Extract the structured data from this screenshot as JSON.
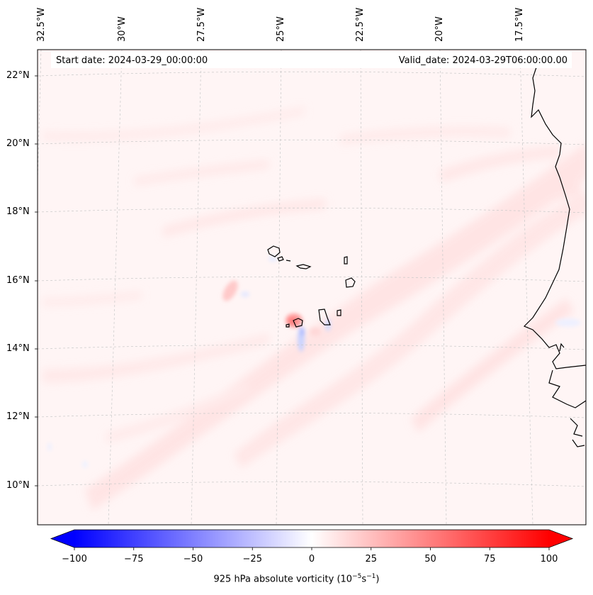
{
  "header": {
    "start_date": "Start date: 2024-03-29_00:00:00",
    "valid_date": "Valid_date: 2024-03-29T06:00:00.00"
  },
  "longitude_labels": [
    "32.5°W",
    "30°W",
    "27.5°W",
    "25°W",
    "22.5°W",
    "20°W",
    "17.5°W"
  ],
  "latitude_labels": [
    "22°N",
    "20°N",
    "18°N",
    "16°N",
    "14°N",
    "12°N",
    "10°N"
  ],
  "map": {
    "field": "925 hPa absolute vorticity",
    "colormap": "bwr",
    "background_color": "#fff5f5",
    "coastline_color": "#000000",
    "gridline_style": "dashed light grey"
  },
  "colorbar": {
    "ticks": [
      "−100",
      "−75",
      "−50",
      "−25",
      "0",
      "25",
      "50",
      "75",
      "100"
    ],
    "label_main": "925 hPa absolute vorticity (10",
    "label_exp1": "−5",
    "label_mid": "s",
    "label_exp2": "−1",
    "label_end": ")",
    "min_color": "#0000ff",
    "mid_color": "#ffffff",
    "max_color": "#ff0000",
    "extend": "both"
  }
}
